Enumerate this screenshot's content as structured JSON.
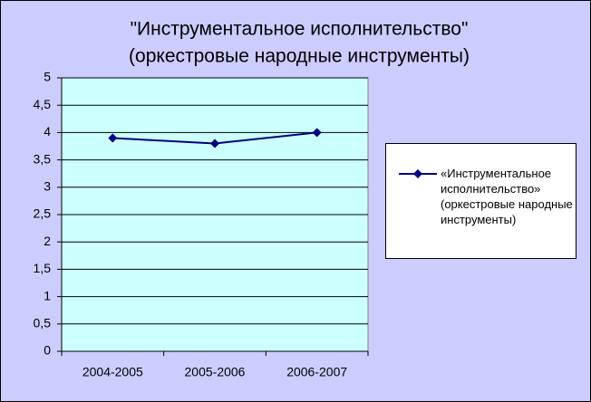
{
  "chart_data": {
    "type": "line",
    "title": [
      "\"Инструментальное исполнительство\"",
      "(оркестровые народные инструменты)"
    ],
    "categories": [
      "2004-2005",
      "2005-2006",
      "2006-2007"
    ],
    "series": [
      {
        "name": "«Инструментальное исполнительство» (оркестровые народные инструменты)",
        "color": "#000080",
        "values": [
          3.9,
          3.8,
          4.0
        ]
      }
    ],
    "ylim": [
      0,
      5
    ],
    "yticks": [
      0,
      {
        "value": 0.5,
        "label": "0,5"
      },
      1,
      {
        "value": 1.5,
        "label": "1,5"
      },
      2,
      {
        "value": 2.5,
        "label": "2,5"
      },
      3,
      {
        "value": 3.5,
        "label": "3,5"
      },
      4,
      {
        "value": 4.5,
        "label": "4,5"
      },
      5
    ],
    "grid": true,
    "legend": "right"
  }
}
